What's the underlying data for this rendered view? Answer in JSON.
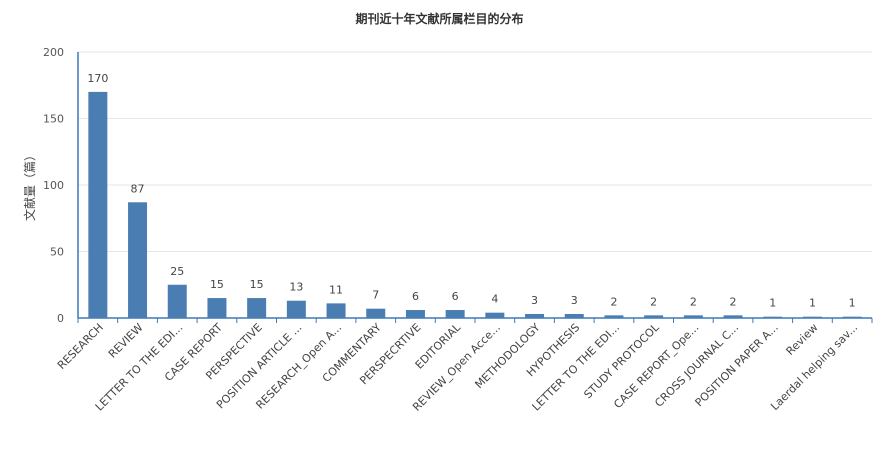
{
  "chart_data": {
    "type": "bar",
    "title": "期刊近十年文献所属栏目的分布",
    "xlabel": "",
    "ylabel": "文献量（篇）",
    "ylim": [
      0,
      200
    ],
    "yticks": [
      0,
      50,
      100,
      150,
      200
    ],
    "grid": true,
    "legend": "none",
    "categories": [
      "RESEARCH",
      "REVIEW",
      "LETTER TO THE EDI...",
      "CASE REPORT",
      "PERSPECTIVE",
      "POSITION ARTICLE ...",
      "RESEARCH_Open A...",
      "COMMENTARY",
      "PERSPECRTIVE",
      "EDITORIAL",
      "REVIEW_Open Acce...",
      "METHODOLOGY",
      "HYPOTHESIS",
      "LETTER TO THE EDI...",
      "STUDY PROTOCOL",
      "CASE REPORT_Ope...",
      "CROSS JOURNAL C...",
      "POSITION PAPER A...",
      "Review",
      "Laerdal helping sav..."
    ],
    "values": [
      170,
      87,
      25,
      15,
      15,
      13,
      11,
      7,
      6,
      6,
      4,
      3,
      3,
      2,
      2,
      2,
      2,
      1,
      1,
      1
    ],
    "bar_color": "#4a7eb3"
  }
}
